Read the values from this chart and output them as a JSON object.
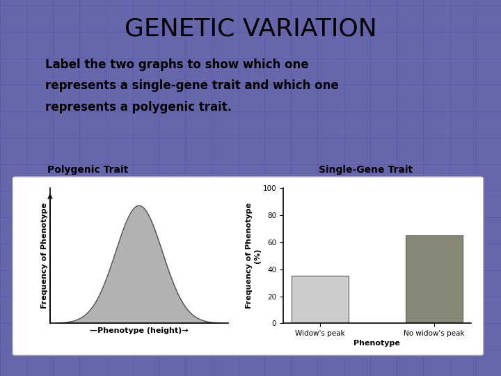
{
  "title": "GENETIC VARIATION",
  "subtitle_lines": [
    "Label the two graphs to show which one",
    "represents a single-gene trait and which one",
    "represents a polygenic trait."
  ],
  "left_label": "Polygenic Trait",
  "right_label": "Single-Gene Trait",
  "left_xlabel": "—Phenotype (height)→",
  "left_ylabel": "Frequency of Phenotype",
  "right_xlabel": "Phenotype",
  "right_ylabel": "Frequency of Phenotype\n(%)",
  "bar_categories": [
    "Widow's peak",
    "No widow's peak"
  ],
  "bar_values": [
    35,
    65
  ],
  "bar_colors": [
    "#cccccc",
    "#888877"
  ],
  "right_ylim": [
    0,
    100
  ],
  "right_yticks": [
    0,
    20,
    40,
    60,
    80,
    100
  ],
  "background_color": "#6666aa",
  "grid_color": "#5555aa",
  "panel_color": "#ffffff",
  "title_color": "#000000",
  "title_fontsize": 26,
  "subtitle_fontsize": 12,
  "label_fontsize": 10,
  "axis_label_fontsize": 8,
  "tick_fontsize": 7.5,
  "curve_fill_color": "#aaaaaa",
  "curve_edge_color": "#555555"
}
